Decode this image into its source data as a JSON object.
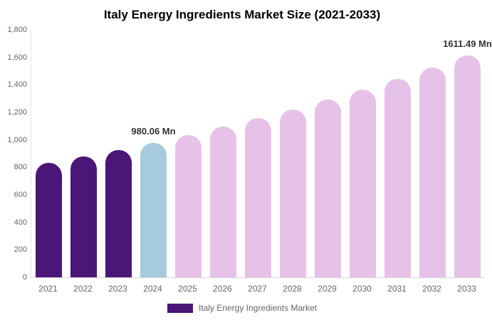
{
  "chart_data": {
    "type": "bar",
    "title": "Italy Energy Ingredients Market Size (2021-2033)",
    "categories": [
      "2021",
      "2022",
      "2023",
      "2024",
      "2025",
      "2026",
      "2027",
      "2028",
      "2029",
      "2030",
      "2031",
      "2032",
      "2033"
    ],
    "values": [
      830.3,
      877.5,
      927.4,
      980.06,
      1035.8,
      1094.6,
      1156.8,
      1222.6,
      1292.0,
      1365.4,
      1443.0,
      1525.0,
      1611.49
    ],
    "unit": "Mn",
    "ylim": [
      0,
      1800
    ],
    "y_tick_labels_top_to_bottom": [
      "1,800",
      "1,600",
      "1,400",
      "1,200",
      "1,000",
      "800",
      "600",
      "400",
      "200",
      "0"
    ],
    "grid": false,
    "legend_position": "bottom",
    "bar_color_keys": [
      "historical",
      "historical",
      "historical",
      "current",
      "forecast",
      "forecast",
      "forecast",
      "forecast",
      "forecast",
      "forecast",
      "forecast",
      "forecast",
      "forecast"
    ],
    "palette": {
      "historical": "#4a1677",
      "current": "#a5cbdc",
      "forecast": "#e7c2e8"
    },
    "data_labels": {
      "3": "980.06 Mn",
      "12": "1611.49 Mn"
    },
    "legend": {
      "label": "Italy Energy Ingredients Market",
      "swatch_color": "#4a1677"
    }
  }
}
